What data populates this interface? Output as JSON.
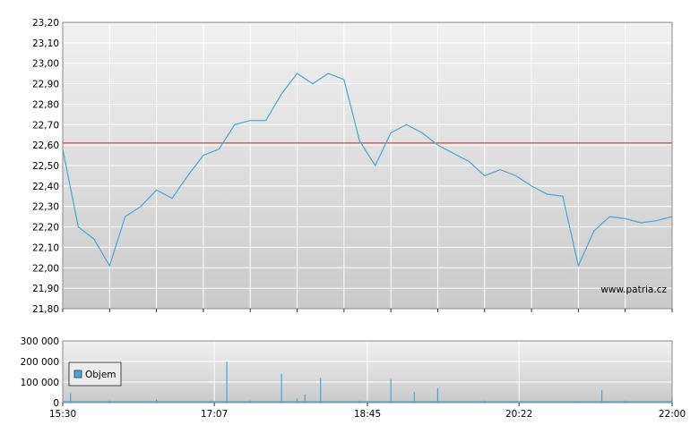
{
  "watermark": "www.patria.cz",
  "chart_data": [
    {
      "type": "line",
      "title": "",
      "xlabel": "",
      "ylabel": "",
      "ylim": [
        21.8,
        23.2
      ],
      "yticks": [
        "23,20",
        "23,10",
        "23,00",
        "22,90",
        "22,80",
        "22,70",
        "22,60",
        "22,50",
        "22,40",
        "22,30",
        "22,20",
        "22,10",
        "22,00",
        "21,90",
        "21,80"
      ],
      "grid": true,
      "line_color": "#4aa3d8",
      "reference_line": {
        "value": 22.61,
        "color": "#cc2222"
      },
      "x": [
        "15:30",
        "15:40",
        "15:50",
        "16:00",
        "16:10",
        "16:20",
        "16:30",
        "16:40",
        "16:50",
        "17:00",
        "17:10",
        "17:20",
        "17:30",
        "17:40",
        "17:50",
        "18:00",
        "18:10",
        "18:20",
        "18:30",
        "18:40",
        "18:50",
        "19:00",
        "19:10",
        "19:20",
        "19:30",
        "19:40",
        "19:50",
        "20:00",
        "20:10",
        "20:20",
        "20:30",
        "20:40",
        "20:50",
        "21:00",
        "21:10",
        "21:20",
        "21:30",
        "21:40",
        "21:50",
        "22:00"
      ],
      "values": [
        22.58,
        22.2,
        22.14,
        22.01,
        22.25,
        22.3,
        22.38,
        22.34,
        22.45,
        22.55,
        22.58,
        22.7,
        22.72,
        22.72,
        22.85,
        22.95,
        22.9,
        22.95,
        22.92,
        22.62,
        22.5,
        22.66,
        22.7,
        22.66,
        22.6,
        22.56,
        22.52,
        22.45,
        22.48,
        22.45,
        22.4,
        22.36,
        22.35,
        22.01,
        22.18,
        22.25,
        22.24,
        22.22,
        22.23,
        22.25
      ]
    },
    {
      "type": "bar",
      "title": "",
      "ylim": [
        0,
        300000
      ],
      "yticks": [
        "300 000",
        "200 000",
        "100 000",
        "0"
      ],
      "xticks": [
        "15:30",
        "17:07",
        "18:45",
        "20:22",
        "22:00"
      ],
      "legend": {
        "label": "Objem",
        "placement": "left"
      },
      "bar_color": "#4aa3d8",
      "x": [
        "15:35",
        "16:00",
        "16:30",
        "17:05",
        "17:15",
        "17:30",
        "17:50",
        "18:00",
        "18:05",
        "18:15",
        "18:40",
        "18:50",
        "19:00",
        "19:15",
        "19:30",
        "20:00",
        "20:20",
        "21:00",
        "21:15",
        "21:30",
        "22:00"
      ],
      "values": [
        45000,
        10000,
        15000,
        10000,
        200000,
        10000,
        140000,
        20000,
        40000,
        120000,
        10000,
        5000,
        115000,
        50000,
        70000,
        10000,
        5000,
        5000,
        60000,
        10000,
        30000
      ]
    }
  ]
}
